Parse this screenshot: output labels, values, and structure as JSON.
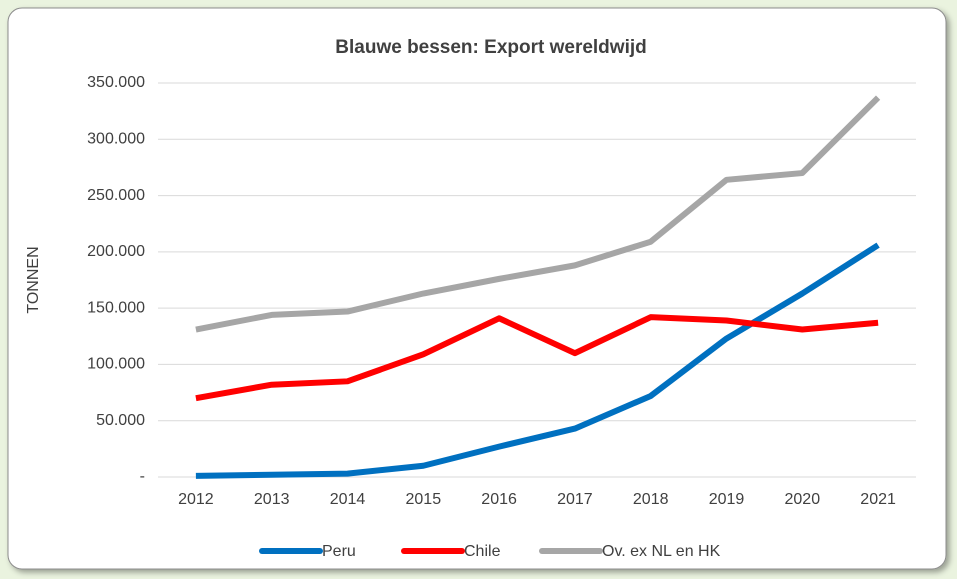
{
  "chart_data": {
    "type": "line",
    "title": "Blauwe bessen: Export wereldwijd",
    "y_label": "TONNEN",
    "categories": [
      "2012",
      "2013",
      "2014",
      "2015",
      "2016",
      "2017",
      "2018",
      "2019",
      "2020",
      "2021"
    ],
    "series": [
      {
        "name": "Peru",
        "color": "#0070c0",
        "values": [
          1000,
          2000,
          3000,
          10000,
          27000,
          43000,
          72000,
          123000,
          163000,
          206000
        ]
      },
      {
        "name": "Chile",
        "color": "#ff0000",
        "values": [
          70000,
          82000,
          85000,
          109000,
          141000,
          110000,
          142000,
          139000,
          131000,
          137000
        ]
      },
      {
        "name": "Ov. ex NL en HK",
        "color": "#a6a6a6",
        "values": [
          131000,
          144000,
          147000,
          163000,
          176000,
          188000,
          209000,
          264000,
          270000,
          337000
        ]
      }
    ],
    "ylim": [
      0,
      350000
    ],
    "yticks": [
      {
        "value": 0,
        "label": "-"
      },
      {
        "value": 50000,
        "label": "50.000"
      },
      {
        "value": 100000,
        "label": "100.000"
      },
      {
        "value": 150000,
        "label": "150.000"
      },
      {
        "value": 200000,
        "label": "200.000"
      },
      {
        "value": 250000,
        "label": "250.000"
      },
      {
        "value": 300000,
        "label": "300.000"
      },
      {
        "value": 350000,
        "label": "350.000"
      }
    ],
    "grid": true,
    "legend": "bottom"
  }
}
